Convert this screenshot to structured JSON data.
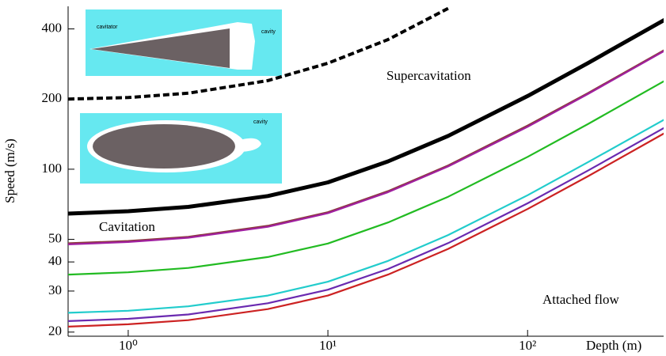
{
  "chart_data": {
    "type": "line",
    "y_label": "Speed (m/s)",
    "x_label": "Depth (m)",
    "log_x": true,
    "log_y": true,
    "xlim": [
      0.5,
      480
    ],
    "ylim": [
      19.2,
      500
    ],
    "xticks": [
      {
        "value": 1,
        "label": "10⁰"
      },
      {
        "value": 10,
        "label": "10¹"
      },
      {
        "value": 100,
        "label": "10²"
      }
    ],
    "yticks": [
      20,
      30,
      40,
      50,
      100,
      200,
      400
    ],
    "x": [
      0.5,
      1,
      2,
      5,
      10,
      20,
      40,
      100,
      200,
      500
    ],
    "series": [
      {
        "color": "#000000",
        "dashed": true,
        "values": [
          200,
          203,
          212,
          240,
          285,
          360,
          490,
          null,
          null,
          null
        ]
      },
      {
        "color": "#000000",
        "values": [
          64.5,
          66,
          68.9,
          76.7,
          87.8,
          108,
          139,
          206,
          285,
          444
        ]
      },
      {
        "color": "#8b3a3a",
        "values": [
          48.1,
          49.2,
          51.3,
          57.2,
          65.4,
          80.5,
          103.8,
          154,
          212,
          330
        ]
      },
      {
        "color": "#a020a0",
        "values": [
          47.6,
          48.7,
          50.8,
          56.6,
          64.8,
          79.7,
          102.8,
          152,
          210,
          327
        ]
      },
      {
        "color": "#22bb22",
        "values": [
          35.3,
          36.1,
          37.7,
          42,
          48,
          59.1,
          76.2,
          113,
          156,
          243
        ]
      },
      {
        "color": "#22cccc",
        "values": [
          24.2,
          24.7,
          25.8,
          28.7,
          32.9,
          40.4,
          52.2,
          77.3,
          107,
          166
        ]
      },
      {
        "color": "#6a2ab0",
        "values": [
          22.3,
          22.8,
          23.8,
          26.6,
          30.4,
          37.3,
          48.2,
          71.4,
          98.5,
          153
        ]
      },
      {
        "color": "#cc2222",
        "values": [
          21.1,
          21.6,
          22.5,
          25.1,
          28.7,
          35.3,
          45.5,
          67.5,
          93.1,
          145
        ]
      }
    ],
    "annotations": [
      "Supercavitation",
      "Cavitation",
      "Attached flow"
    ],
    "insets": [
      {
        "labels": [
          "cavitator",
          "cavity"
        ]
      },
      {
        "labels": [
          "cavity"
        ]
      }
    ]
  }
}
